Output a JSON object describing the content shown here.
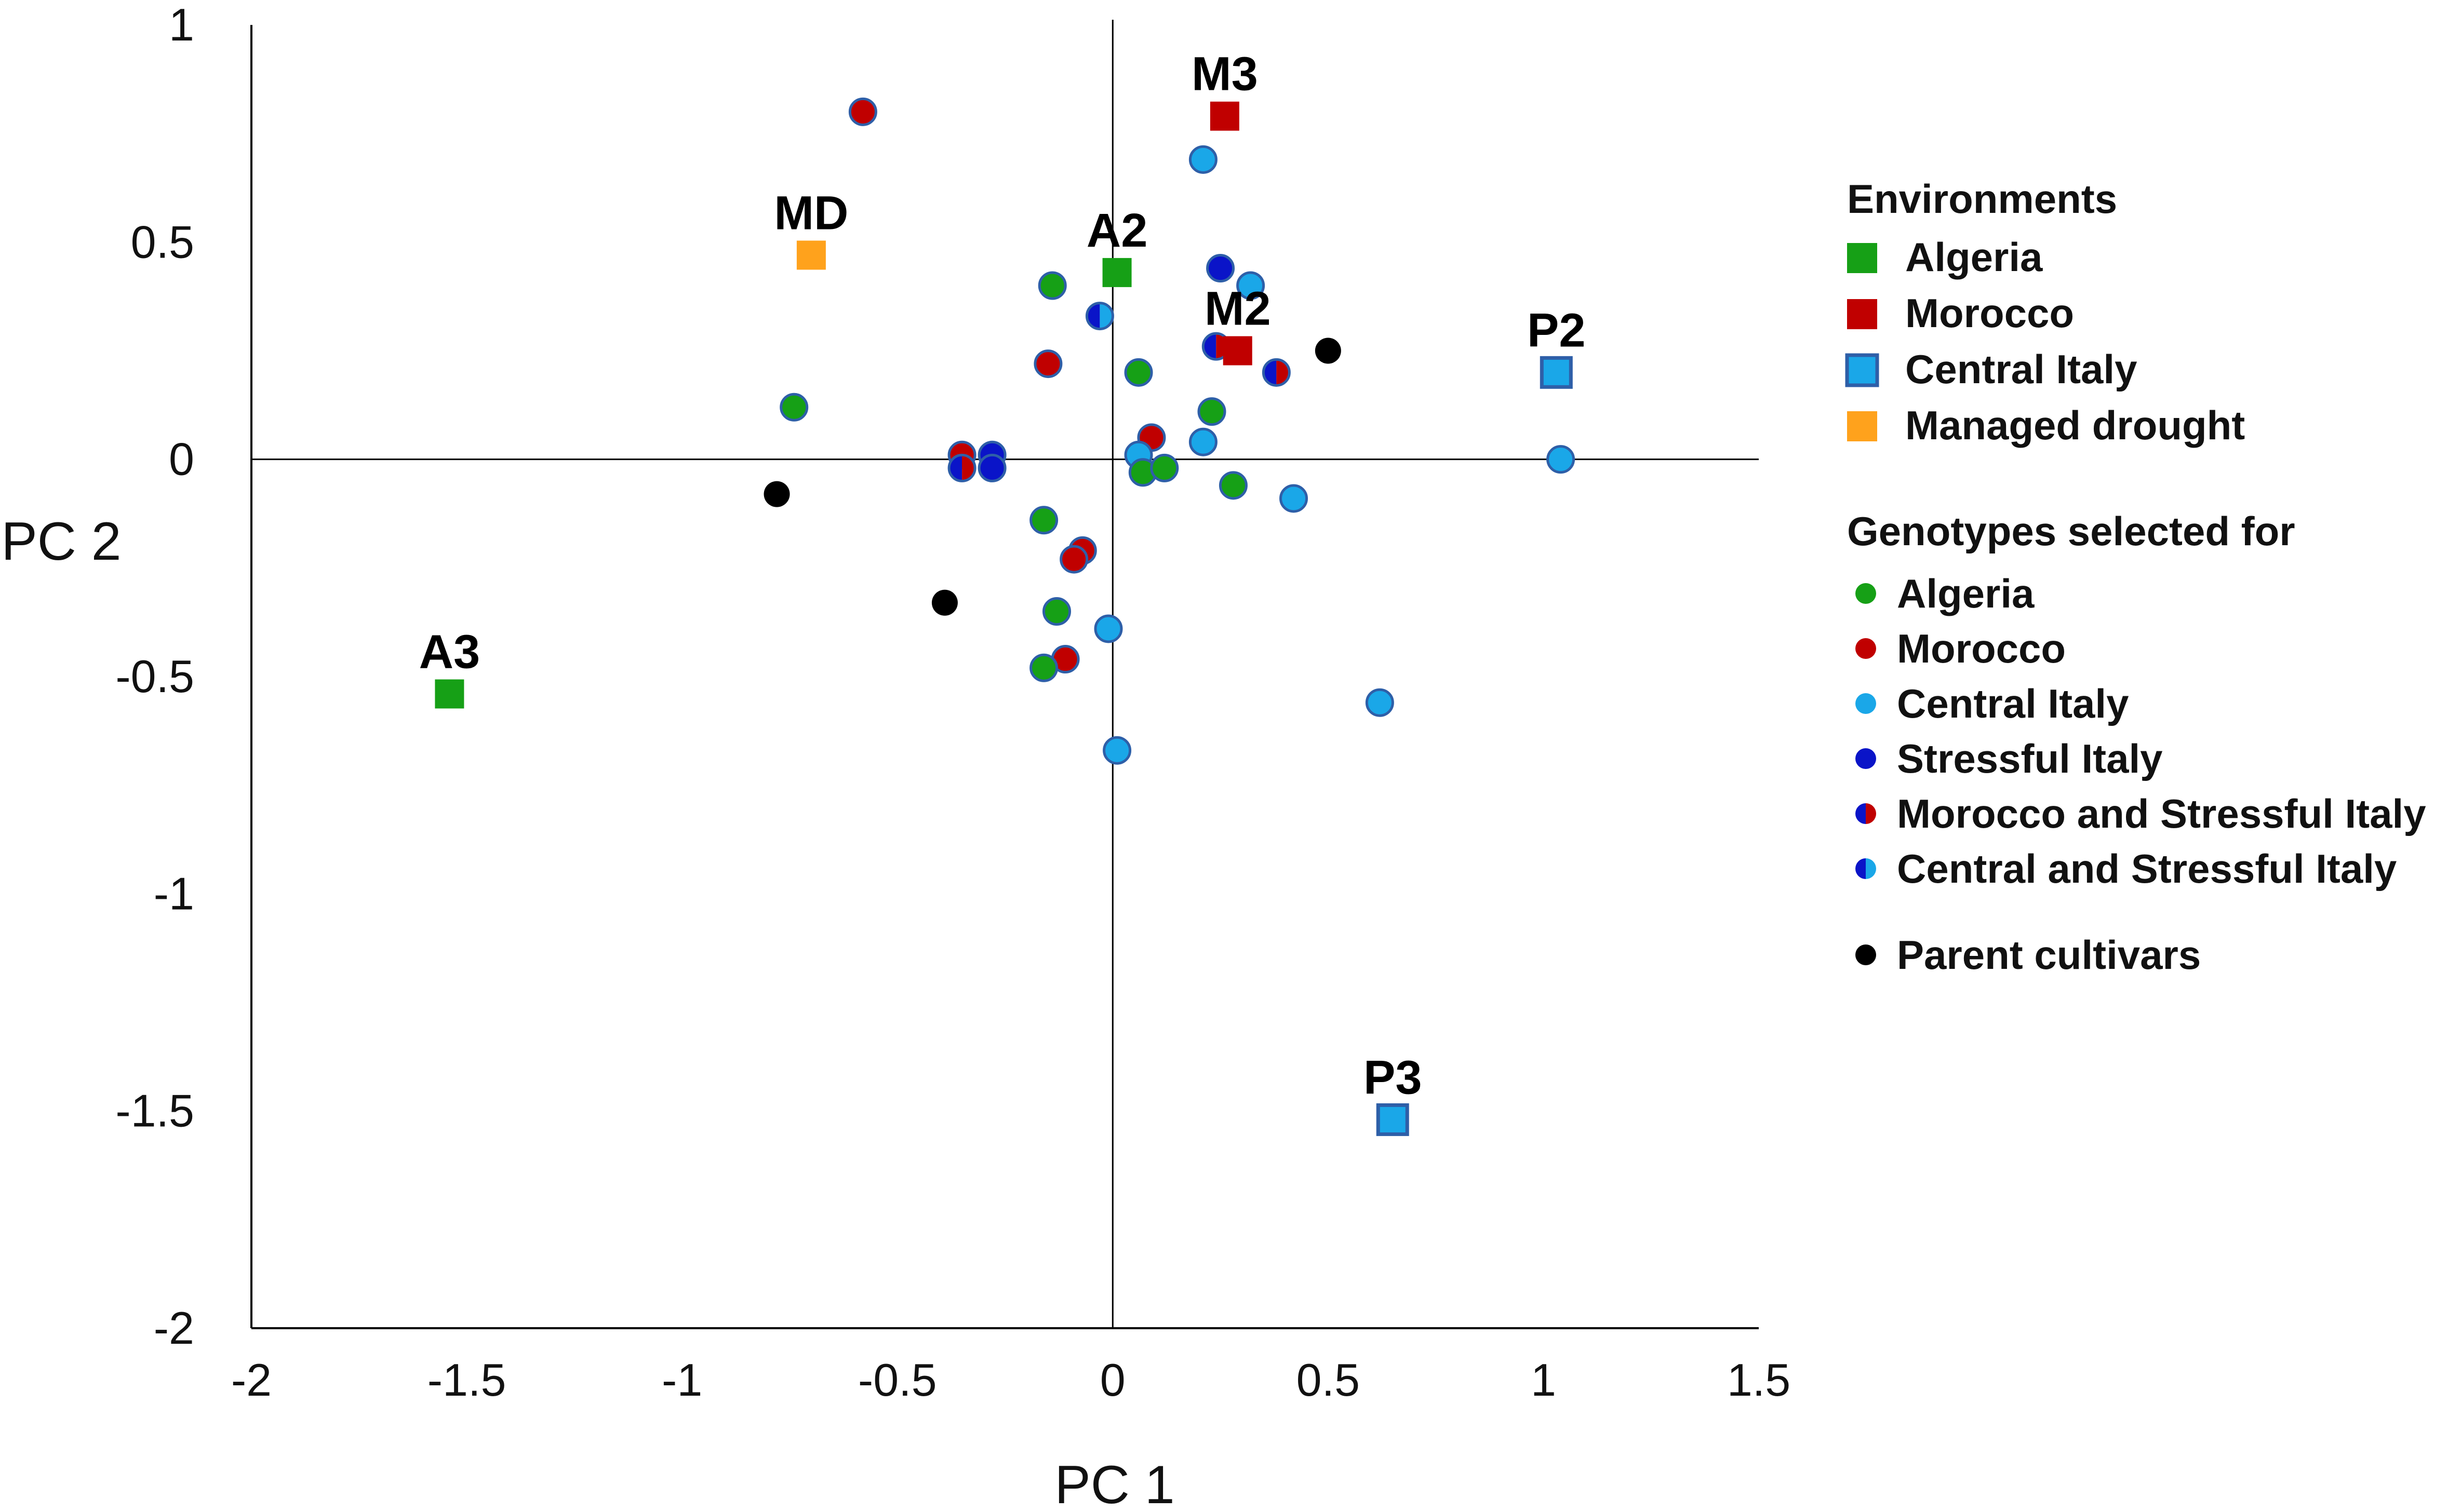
{
  "chart_data": {
    "type": "scatter",
    "xlabel": "PC 1",
    "ylabel": "PC 2",
    "xlim": [
      -2,
      1.5
    ],
    "ylim": [
      -2,
      1
    ],
    "x_ticks": [
      "-2",
      "-1.5",
      "-1",
      "-0.5",
      "0",
      "0.5",
      "1",
      "1.5"
    ],
    "y_ticks": [
      "1",
      "0.5",
      "0",
      "-0.5",
      "-1",
      "-1.5",
      "-2"
    ],
    "colors": {
      "algeria": "#16a016",
      "morocco": "#c00000",
      "central_italy": "#1aa7e8",
      "stressful_italy": "#0a14c8",
      "managed_drought": "#ffa21c",
      "parent": "#000000",
      "outline": "#2e5fa8"
    },
    "environments": [
      {
        "label": "M3",
        "x": 0.26,
        "y": 0.79,
        "env": "morocco"
      },
      {
        "label": "MD",
        "x": -0.7,
        "y": 0.47,
        "env": "managed_drought"
      },
      {
        "label": "A2",
        "x": 0.01,
        "y": 0.43,
        "env": "algeria"
      },
      {
        "label": "M2",
        "x": 0.29,
        "y": 0.25,
        "env": "morocco"
      },
      {
        "label": "P2",
        "x": 1.03,
        "y": 0.2,
        "env": "central_italy"
      },
      {
        "label": "A3",
        "x": -1.54,
        "y": -0.54,
        "env": "algeria"
      },
      {
        "label": "P3",
        "x": 0.65,
        "y": -1.52,
        "env": "central_italy"
      }
    ],
    "genotypes": [
      {
        "x": -0.58,
        "y": 0.8,
        "group": "morocco"
      },
      {
        "x": 0.21,
        "y": 0.69,
        "group": "central_italy"
      },
      {
        "x": -0.14,
        "y": 0.4,
        "group": "algeria"
      },
      {
        "x": 0.25,
        "y": 0.44,
        "group": "stressful_italy"
      },
      {
        "x": 0.32,
        "y": 0.4,
        "group": "central_italy"
      },
      {
        "x": -0.03,
        "y": 0.33,
        "group": "central_stressful_italy"
      },
      {
        "x": 0.5,
        "y": 0.25,
        "group": "parent"
      },
      {
        "x": 0.24,
        "y": 0.26,
        "group": "morocco_stressful_italy"
      },
      {
        "x": -0.15,
        "y": 0.22,
        "group": "morocco"
      },
      {
        "x": 0.06,
        "y": 0.2,
        "group": "algeria"
      },
      {
        "x": 0.38,
        "y": 0.2,
        "group": "morocco_stressful_italy"
      },
      {
        "x": -0.74,
        "y": 0.12,
        "group": "algeria"
      },
      {
        "x": 0.23,
        "y": 0.11,
        "group": "algeria"
      },
      {
        "x": 0.09,
        "y": 0.05,
        "group": "morocco"
      },
      {
        "x": 0.21,
        "y": 0.04,
        "group": "central_italy"
      },
      {
        "x": -0.35,
        "y": 0.01,
        "group": "morocco"
      },
      {
        "x": -0.28,
        "y": 0.01,
        "group": "stressful_italy"
      },
      {
        "x": 0.06,
        "y": 0.01,
        "group": "central_italy"
      },
      {
        "x": 1.04,
        "y": 0.0,
        "group": "central_italy"
      },
      {
        "x": -0.35,
        "y": -0.02,
        "group": "morocco_stressful_italy"
      },
      {
        "x": -0.28,
        "y": -0.02,
        "group": "stressful_italy"
      },
      {
        "x": 0.07,
        "y": -0.03,
        "group": "algeria"
      },
      {
        "x": 0.12,
        "y": -0.02,
        "group": "algeria"
      },
      {
        "x": 0.28,
        "y": -0.06,
        "group": "algeria"
      },
      {
        "x": -0.78,
        "y": -0.08,
        "group": "parent"
      },
      {
        "x": 0.42,
        "y": -0.09,
        "group": "central_italy"
      },
      {
        "x": -0.16,
        "y": -0.14,
        "group": "algeria"
      },
      {
        "x": -0.07,
        "y": -0.21,
        "group": "morocco"
      },
      {
        "x": -0.09,
        "y": -0.23,
        "group": "morocco"
      },
      {
        "x": -0.39,
        "y": -0.33,
        "group": "parent"
      },
      {
        "x": -0.13,
        "y": -0.35,
        "group": "algeria"
      },
      {
        "x": -0.01,
        "y": -0.39,
        "group": "central_italy"
      },
      {
        "x": -0.11,
        "y": -0.46,
        "group": "morocco"
      },
      {
        "x": -0.16,
        "y": -0.48,
        "group": "algeria"
      },
      {
        "x": 0.62,
        "y": -0.56,
        "group": "central_italy"
      },
      {
        "x": 0.01,
        "y": -0.67,
        "group": "central_italy"
      }
    ],
    "legend": {
      "position": "right",
      "environments_title": "Environments",
      "environments": [
        {
          "label": "Algeria",
          "env": "algeria"
        },
        {
          "label": "Morocco",
          "env": "morocco"
        },
        {
          "label": "Central Italy",
          "env": "central_italy"
        },
        {
          "label": "Managed drought",
          "env": "managed_drought"
        }
      ],
      "genotypes_title": "Genotypes selected for",
      "genotypes": [
        {
          "label": "Algeria",
          "group": "algeria"
        },
        {
          "label": "Morocco",
          "group": "morocco"
        },
        {
          "label": "Central Italy",
          "group": "central_italy"
        },
        {
          "label": "Stressful Italy",
          "group": "stressful_italy"
        },
        {
          "label": "Morocco and Stressful Italy",
          "group": "morocco_stressful_italy"
        },
        {
          "label": "Central and Stressful Italy",
          "group": "central_stressful_italy"
        }
      ],
      "parent_label": "Parent cultivars"
    }
  }
}
